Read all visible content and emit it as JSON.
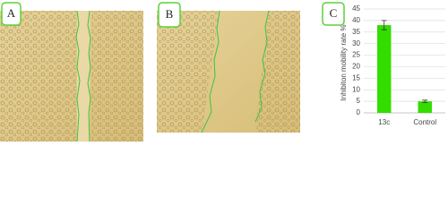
{
  "panels": [
    {
      "label": "A"
    },
    {
      "label": "B"
    }
  ],
  "chart_data": {
    "type": "bar",
    "panel_label": "C",
    "y_label": "Inhibiton mobility rate %",
    "categories": [
      "13c",
      "Control"
    ],
    "values": [
      38,
      5
    ],
    "errors": [
      2,
      0.5
    ],
    "color": "#33dd00",
    "ylim": [
      0,
      45
    ],
    "yticks": [
      0,
      5,
      10,
      15,
      20,
      25,
      30,
      35,
      40,
      45
    ],
    "grid": true
  }
}
